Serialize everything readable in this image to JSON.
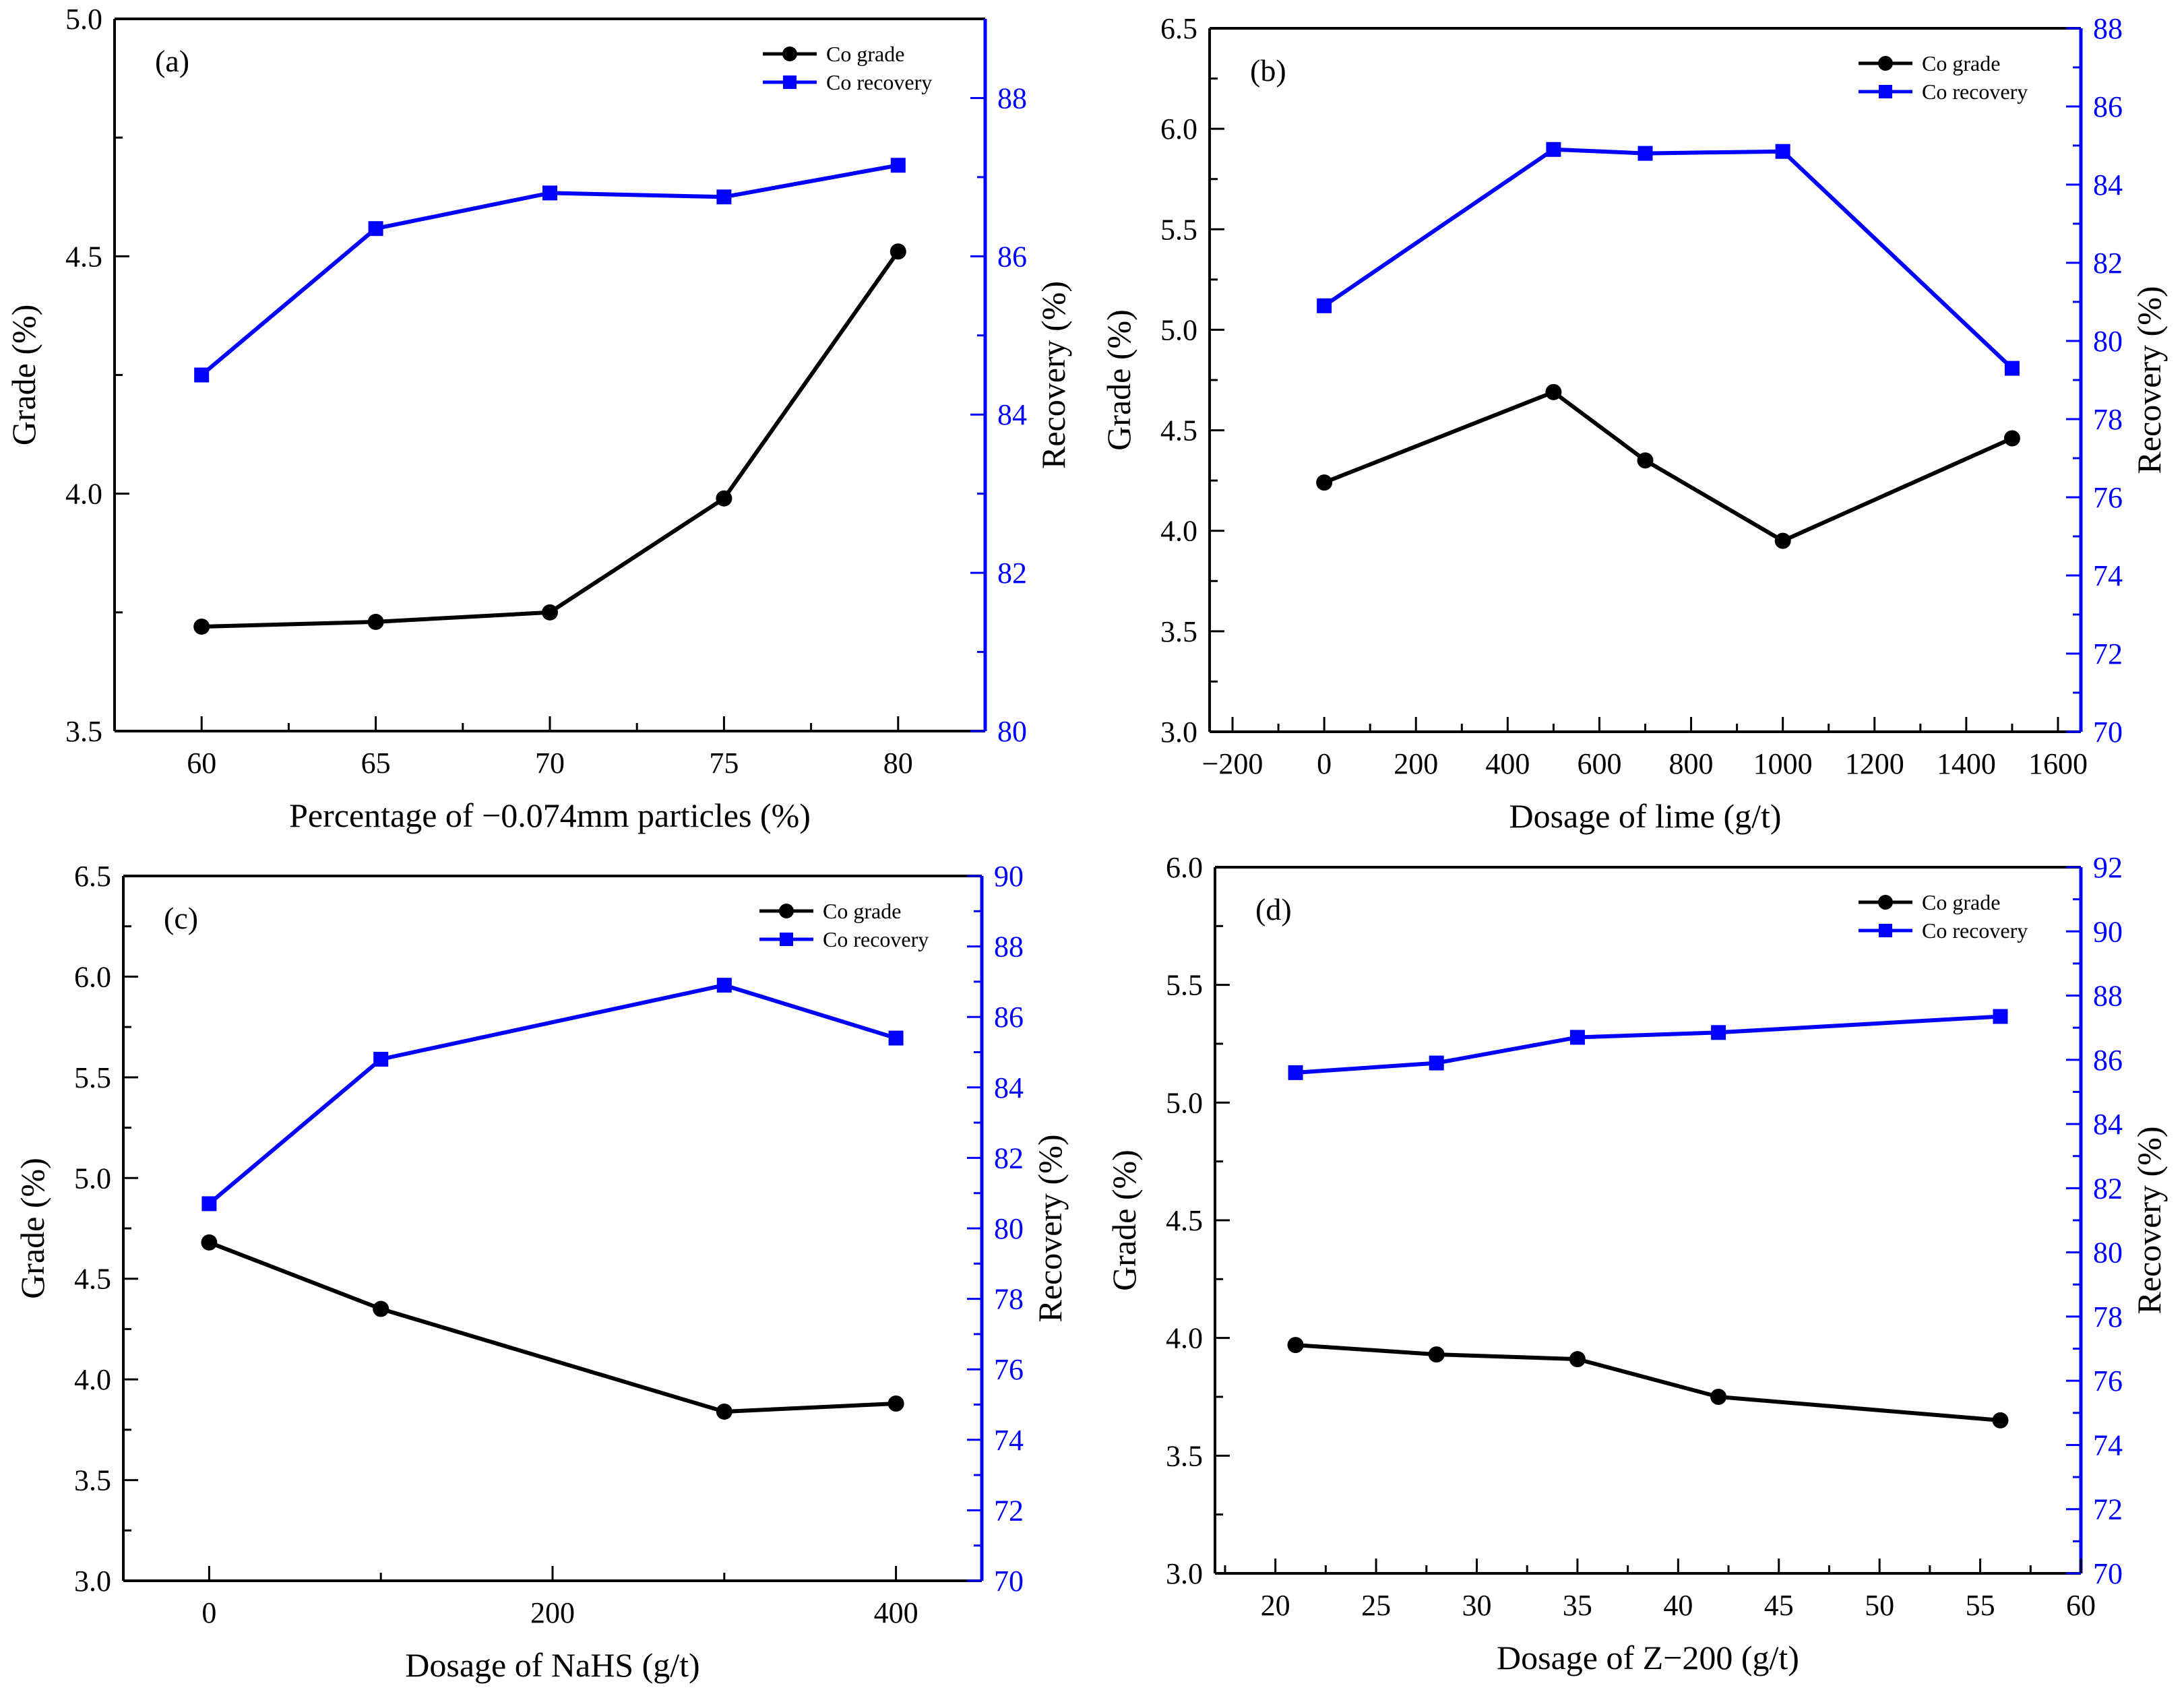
{
  "colors": {
    "grade": "#000000",
    "recovery": "#0000ff"
  },
  "chart_data": [
    {
      "type": "line",
      "panel": "(a)",
      "xlabel": "Percentage of −0.074mm particles (%)",
      "ylabel_left": "Grade (%)",
      "ylabel_right": "Recovery (%)",
      "xlim": [
        57.5,
        82.5
      ],
      "xticks": [
        60,
        65,
        70,
        75,
        80
      ],
      "xtick_labels": [
        "60",
        "65",
        "70",
        "75",
        "80"
      ],
      "ylim_left": [
        3.5,
        5.0
      ],
      "yticks_left": [
        3.5,
        4.0,
        4.5,
        5.0
      ],
      "ytick_labels_left": [
        "3.5",
        "4.0",
        "4.5",
        "5.0"
      ],
      "ylim_right": [
        80,
        89
      ],
      "yticks_right": [
        80,
        82,
        84,
        86,
        88
      ],
      "ytick_labels_right": [
        "80",
        "82",
        "84",
        "86",
        "88"
      ],
      "legend": {
        "position": "top-right",
        "entries": [
          "Co grade",
          "Co recovery"
        ]
      },
      "x": [
        60,
        65,
        70,
        75,
        80
      ],
      "series": [
        {
          "name": "Co grade",
          "axis": "left",
          "marker": "circle",
          "values": [
            3.72,
            3.73,
            3.75,
            3.99,
            4.51
          ]
        },
        {
          "name": "Co recovery",
          "axis": "right",
          "marker": "square",
          "values": [
            84.5,
            86.35,
            86.8,
            86.75,
            87.15
          ]
        }
      ]
    },
    {
      "type": "line",
      "panel": "(b)",
      "xlabel": "Dosage of lime (g/t)",
      "ylabel_left": "Grade (%)",
      "ylabel_right": "Recovery (%)",
      "xlim": [
        -250,
        1650
      ],
      "xticks": [
        -200,
        0,
        200,
        400,
        600,
        800,
        1000,
        1200,
        1400,
        1600
      ],
      "xtick_labels": [
        "−200",
        "0",
        "200",
        "400",
        "600",
        "800",
        "1000",
        "1200",
        "1400",
        "1600"
      ],
      "ylim_left": [
        3.0,
        6.5
      ],
      "yticks_left": [
        3.0,
        3.5,
        4.0,
        4.5,
        5.0,
        5.5,
        6.0,
        6.5
      ],
      "ytick_labels_left": [
        "3.0",
        "3.5",
        "4.0",
        "4.5",
        "5.0",
        "5.5",
        "6.0",
        "6.5"
      ],
      "ylim_right": [
        70,
        88
      ],
      "yticks_right": [
        70,
        72,
        74,
        76,
        78,
        80,
        82,
        84,
        86,
        88
      ],
      "ytick_labels_right": [
        "70",
        "72",
        "74",
        "76",
        "78",
        "80",
        "82",
        "84",
        "86",
        "88"
      ],
      "legend": {
        "position": "top-right",
        "entries": [
          "Co grade",
          "Co recovery"
        ]
      },
      "x": [
        0,
        500,
        700,
        1000,
        1500
      ],
      "series": [
        {
          "name": "Co grade",
          "axis": "left",
          "marker": "circle",
          "values": [
            4.24,
            4.69,
            4.35,
            3.95,
            4.46
          ]
        },
        {
          "name": "Co recovery",
          "axis": "right",
          "marker": "square",
          "values": [
            80.9,
            84.9,
            84.8,
            84.85,
            79.3
          ]
        }
      ]
    },
    {
      "type": "line",
      "panel": "(c)",
      "xlabel": "Dosage of NaHS (g/t)",
      "ylabel_left": "Grade (%)",
      "ylabel_right": "Recovery (%)",
      "xlim": [
        -50,
        450
      ],
      "xticks": [
        0,
        200,
        400
      ],
      "xtick_labels": [
        "0",
        "200",
        "400"
      ],
      "ylim_left": [
        3.0,
        6.5
      ],
      "yticks_left": [
        3.0,
        3.5,
        4.0,
        4.5,
        5.0,
        5.5,
        6.0,
        6.5
      ],
      "ytick_labels_left": [
        "3.0",
        "3.5",
        "4.0",
        "4.5",
        "5.0",
        "5.5",
        "6.0",
        "6.5"
      ],
      "ylim_right": [
        70,
        90
      ],
      "yticks_right": [
        70,
        72,
        74,
        76,
        78,
        80,
        82,
        84,
        86,
        88,
        90
      ],
      "ytick_labels_right": [
        "70",
        "72",
        "74",
        "76",
        "78",
        "80",
        "82",
        "84",
        "86",
        "88",
        "90"
      ],
      "legend": {
        "position": "top-right",
        "entries": [
          "Co grade",
          "Co recovery"
        ]
      },
      "x": [
        0,
        100,
        300,
        400
      ],
      "series": [
        {
          "name": "Co grade",
          "axis": "left",
          "marker": "circle",
          "values": [
            4.68,
            4.35,
            3.84,
            3.88
          ]
        },
        {
          "name": "Co recovery",
          "axis": "right",
          "marker": "square",
          "values": [
            80.7,
            84.8,
            86.9,
            85.4
          ]
        }
      ]
    },
    {
      "type": "line",
      "panel": "(d)",
      "xlabel": "Dosage of Z−200 (g/t)",
      "ylabel_left": "Grade (%)",
      "ylabel_right": "Recovery (%)",
      "xlim": [
        17,
        60
      ],
      "xticks": [
        20,
        25,
        30,
        35,
        40,
        45,
        50,
        55,
        60
      ],
      "xtick_labels": [
        "20",
        "25",
        "30",
        "35",
        "40",
        "45",
        "50",
        "55",
        "60"
      ],
      "ylim_left": [
        3.0,
        6.0
      ],
      "yticks_left": [
        3.0,
        3.5,
        4.0,
        4.5,
        5.0,
        5.5,
        6.0
      ],
      "ytick_labels_left": [
        "3.0",
        "3.5",
        "4.0",
        "4.5",
        "5.0",
        "5.5",
        "6.0"
      ],
      "ylim_right": [
        70,
        92
      ],
      "yticks_right": [
        70,
        72,
        74,
        76,
        78,
        80,
        82,
        84,
        86,
        88,
        90,
        92
      ],
      "ytick_labels_right": [
        "70",
        "72",
        "74",
        "76",
        "78",
        "80",
        "82",
        "84",
        "86",
        "88",
        "90",
        "92"
      ],
      "legend": {
        "position": "top-right",
        "entries": [
          "Co grade",
          "Co recovery"
        ]
      },
      "x": [
        21,
        28,
        35,
        42,
        56
      ],
      "series": [
        {
          "name": "Co grade",
          "axis": "left",
          "marker": "circle",
          "values": [
            3.97,
            3.93,
            3.91,
            3.75,
            3.65
          ]
        },
        {
          "name": "Co recovery",
          "axis": "right",
          "marker": "square",
          "values": [
            85.6,
            85.9,
            86.7,
            86.85,
            87.35
          ]
        }
      ]
    }
  ]
}
